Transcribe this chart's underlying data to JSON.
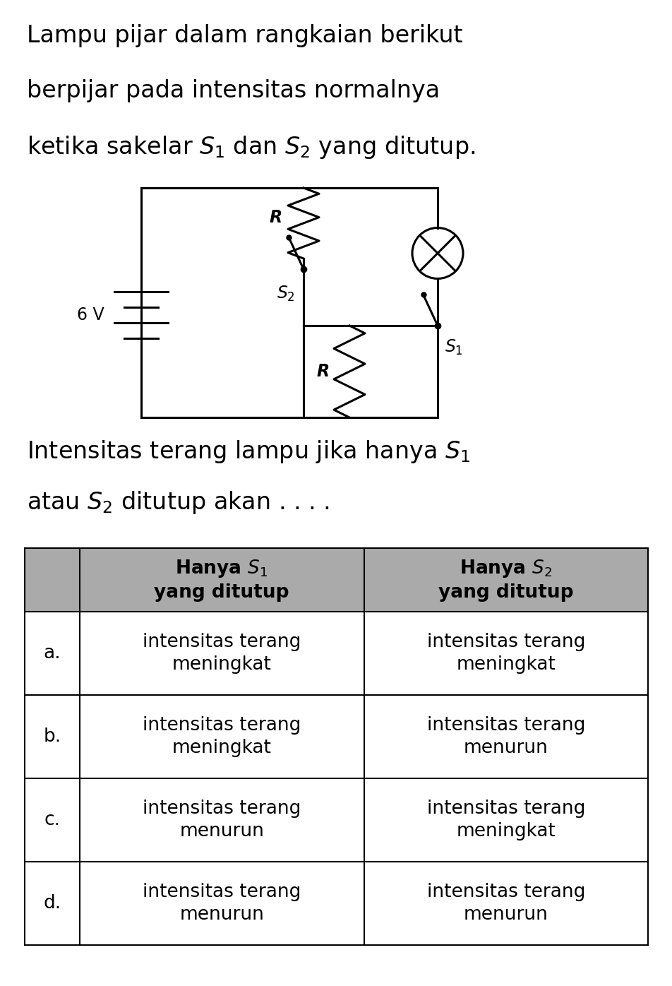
{
  "title_lines": [
    "Lampu pijar dalam rangkaian berikut",
    "berpijar pada intensitas normalnya",
    "ketika sakelar $S_1$ dan $S_2$ yang ditutup."
  ],
  "subtitle_lines": [
    "Intensitas terang lampu jika hanya $S_1$",
    "atau $S_2$ ditutup akan . . . ."
  ],
  "voltage_label": "6 V",
  "R_top_label": "R",
  "R_bot_label": "R",
  "S1_label": "$S_1$",
  "S2_label": "$S_2$",
  "table_rows": [
    [
      "a.",
      "intensitas terang\nmeningkat",
      "intensitas terang\nmeningkat"
    ],
    [
      "b.",
      "intensitas terang\nmeningkat",
      "intensitas terang\nmenurun"
    ],
    [
      "c.",
      "intensitas terang\nmenurun",
      "intensitas terang\nmeningkat"
    ],
    [
      "d.",
      "intensitas terang\nmenurun",
      "intensitas terang\nmenurun"
    ]
  ],
  "bg_color": "#ffffff",
  "line_color": "#000000",
  "table_header_bg": "#aaaaaa",
  "text_color": "#000000",
  "font_size_title": 24,
  "font_size_subtitle": 24,
  "font_size_body": 19,
  "font_size_circuit": 17
}
